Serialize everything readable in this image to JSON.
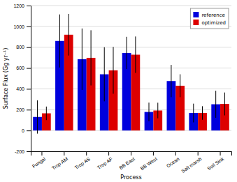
{
  "chart_data": {
    "type": "bar",
    "categories": [
      "Fungal",
      "Trop AM",
      "Trop AS",
      "Trop AF",
      "BB East",
      "BB West",
      "Ocean",
      "Salt marsh",
      "Soil Sink"
    ],
    "series": [
      {
        "name": "reference",
        "color": "#0000dd",
        "values": [
          130,
          860,
          685,
          540,
          745,
          178,
          475,
          168,
          252
        ],
        "errors": [
          160,
          255,
          295,
          260,
          155,
          90,
          155,
          90,
          130
        ]
      },
      {
        "name": "optimized",
        "color": "#dd0000",
        "values": [
          165,
          920,
          698,
          578,
          728,
          192,
          430,
          168,
          255
        ],
        "errors": [
          65,
          200,
          265,
          225,
          175,
          75,
          110,
          65,
          110
        ]
      }
    ],
    "xlabel": "Process",
    "ylabel": "Surface Flux (Gg yr⁻¹)",
    "ylim": [
      -200,
      1200
    ],
    "yticks": [
      -200,
      0,
      200,
      400,
      600,
      800,
      1000,
      1200
    ],
    "grid": true,
    "legend": "upper right"
  }
}
